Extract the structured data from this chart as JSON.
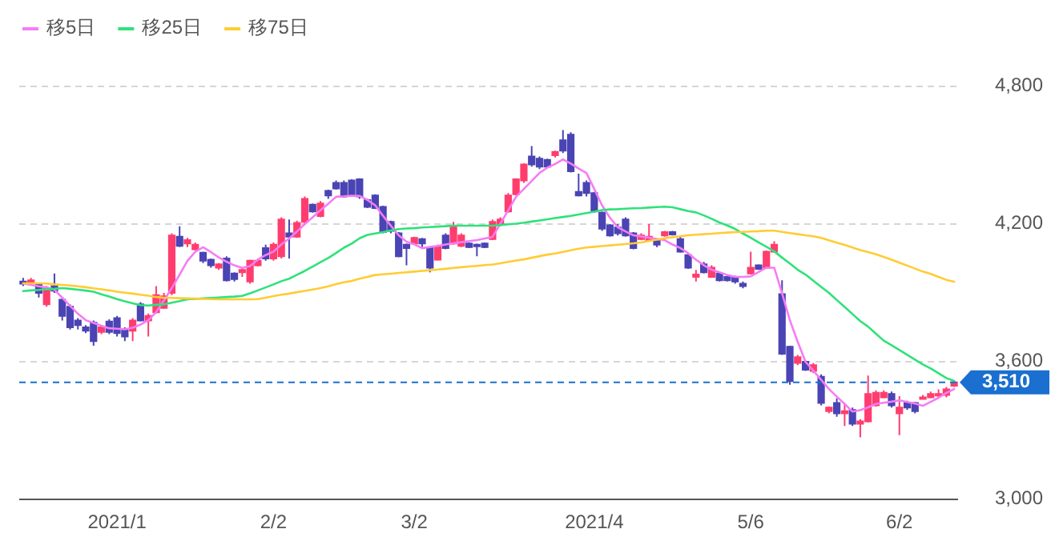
{
  "chart_data": {
    "type": "candlestick",
    "categories": [
      null,
      null,
      null,
      null,
      null,
      null,
      null,
      null,
      null,
      null,
      null,
      null,
      "2021/1",
      null,
      null,
      null,
      null,
      null,
      null,
      null,
      null,
      null,
      null,
      null,
      null,
      null,
      null,
      null,
      null,
      null,
      null,
      null,
      "2/2",
      null,
      null,
      null,
      null,
      null,
      null,
      null,
      null,
      null,
      null,
      null,
      null,
      null,
      null,
      null,
      null,
      null,
      "3/2",
      null,
      null,
      null,
      null,
      null,
      null,
      null,
      null,
      null,
      null,
      null,
      null,
      null,
      null,
      null,
      null,
      null,
      null,
      null,
      null,
      null,
      null,
      "2021/4",
      null,
      null,
      null,
      null,
      null,
      null,
      null,
      null,
      null,
      null,
      null,
      null,
      null,
      null,
      null,
      null,
      null,
      null,
      null,
      "5/6",
      null,
      null,
      null,
      null,
      null,
      null,
      null,
      null,
      null,
      null,
      null,
      null,
      null,
      null,
      null,
      null,
      null,
      null,
      "6/2",
      null,
      null,
      null,
      null,
      null,
      null,
      null
    ],
    "ohlc": [
      [
        3950,
        3965,
        3930,
        3940
      ],
      [
        3945,
        3965,
        3935,
        3955
      ],
      [
        3935,
        3945,
        3880,
        3900
      ],
      [
        3850,
        3930,
        3840,
        3920
      ],
      [
        3930,
        3985,
        3900,
        3910
      ],
      [
        3870,
        3880,
        3780,
        3800
      ],
      [
        3840,
        3850,
        3740,
        3750
      ],
      [
        3780,
        3790,
        3740,
        3760
      ],
      [
        3750,
        3760,
        3725,
        3735
      ],
      [
        3770,
        3780,
        3670,
        3690
      ],
      [
        3730,
        3760,
        3720,
        3750
      ],
      [
        3775,
        3785,
        3720,
        3730
      ],
      [
        3790,
        3800,
        3710,
        3725
      ],
      [
        3740,
        3750,
        3690,
        3710
      ],
      [
        3735,
        3790,
        3690,
        3780
      ],
      [
        3850,
        3860,
        3775,
        3780
      ],
      [
        3780,
        3810,
        3710,
        3800
      ],
      [
        3815,
        3930,
        3810,
        3890
      ],
      [
        3835,
        3900,
        3830,
        3885
      ],
      [
        3900,
        4160,
        3890,
        4150
      ],
      [
        4145,
        4190,
        4100,
        4105
      ],
      [
        4115,
        4140,
        4100,
        4130
      ],
      [
        4090,
        4120,
        4085,
        4110
      ],
      [
        4075,
        4080,
        4030,
        4040
      ],
      [
        4045,
        4050,
        4010,
        4020
      ],
      [
        4010,
        4030,
        4000,
        4025
      ],
      [
        4050,
        4060,
        3950,
        3955
      ],
      [
        3985,
        3990,
        3950,
        3960
      ],
      [
        3990,
        4010,
        3970,
        4000
      ],
      [
        3950,
        4045,
        3940,
        4040
      ],
      [
        4020,
        4050,
        4015,
        4040
      ],
      [
        4095,
        4110,
        4040,
        4050
      ],
      [
        4050,
        4120,
        4040,
        4110
      ],
      [
        4060,
        4230,
        4050,
        4220
      ],
      [
        4160,
        4220,
        4050,
        4145
      ],
      [
        4145,
        4215,
        4140,
        4205
      ],
      [
        4210,
        4320,
        4200,
        4310
      ],
      [
        4285,
        4290,
        4250,
        4255
      ],
      [
        4235,
        4300,
        4230,
        4290
      ],
      [
        4345,
        4350,
        4310,
        4325
      ],
      [
        4380,
        4390,
        4350,
        4355
      ],
      [
        4380,
        4390,
        4315,
        4320
      ],
      [
        4390,
        4395,
        4320,
        4325
      ],
      [
        4395,
        4400,
        4310,
        4320
      ],
      [
        4305,
        4310,
        4270,
        4275
      ],
      [
        4325,
        4330,
        4265,
        4270
      ],
      [
        4275,
        4280,
        4160,
        4165
      ],
      [
        4210,
        4215,
        4160,
        4170
      ],
      [
        4160,
        4165,
        4055,
        4060
      ],
      [
        4110,
        4115,
        4020,
        4095
      ],
      [
        4115,
        4145,
        4110,
        4140
      ],
      [
        4135,
        4140,
        4100,
        4115
      ],
      [
        4095,
        4100,
        3990,
        4010
      ],
      [
        4045,
        4110,
        4040,
        4100
      ],
      [
        4150,
        4160,
        4090,
        4095
      ],
      [
        4115,
        4210,
        4110,
        4190
      ],
      [
        4105,
        4160,
        4100,
        4150
      ],
      [
        4115,
        4120,
        4095,
        4100
      ],
      [
        4110,
        4115,
        4060,
        4105
      ],
      [
        4115,
        4120,
        4095,
        4100
      ],
      [
        4135,
        4220,
        4130,
        4210
      ],
      [
        4200,
        4230,
        4190,
        4220
      ],
      [
        4255,
        4335,
        4250,
        4325
      ],
      [
        4330,
        4400,
        4325,
        4395
      ],
      [
        4390,
        4465,
        4380,
        4460
      ],
      [
        4495,
        4540,
        4450,
        4460
      ],
      [
        4485,
        4495,
        4440,
        4450
      ],
      [
        4480,
        4485,
        4445,
        4450
      ],
      [
        4500,
        4520,
        4490,
        4515
      ],
      [
        4565,
        4610,
        4510,
        4520
      ],
      [
        4590,
        4600,
        4425,
        4430
      ],
      [
        4340,
        4420,
        4320,
        4325
      ],
      [
        4380,
        4390,
        4320,
        4335
      ],
      [
        4335,
        4340,
        4250,
        4255
      ],
      [
        4250,
        4255,
        4170,
        4180
      ],
      [
        4195,
        4200,
        4145,
        4150
      ],
      [
        4185,
        4200,
        4150,
        4160
      ],
      [
        4220,
        4230,
        4145,
        4150
      ],
      [
        4160,
        4165,
        4090,
        4095
      ],
      [
        4135,
        4160,
        4130,
        4150
      ],
      [
        4130,
        4200,
        4125,
        4145
      ],
      [
        4130,
        4135,
        4100,
        4110
      ],
      [
        4150,
        4170,
        4145,
        4165
      ],
      [
        4165,
        4170,
        4150,
        4155
      ],
      [
        4135,
        4145,
        4075,
        4080
      ],
      [
        4065,
        4070,
        4005,
        4010
      ],
      [
        3970,
        4000,
        3950,
        3980
      ],
      [
        4025,
        4035,
        3985,
        3990
      ],
      [
        3970,
        4020,
        3965,
        4010
      ],
      [
        3985,
        3990,
        3950,
        3955
      ],
      [
        3970,
        3975,
        3950,
        3955
      ],
      [
        3970,
        3975,
        3940,
        3950
      ],
      [
        3940,
        3950,
        3920,
        3930
      ],
      [
        3985,
        4080,
        3980,
        4010
      ],
      [
        4020,
        4025,
        4000,
        4005
      ],
      [
        4010,
        4085,
        4005,
        4080
      ],
      [
        4080,
        4125,
        4075,
        4110
      ],
      [
        3895,
        3955,
        3630,
        3635
      ],
      [
        3665,
        3670,
        3500,
        3515
      ],
      [
        3595,
        3630,
        3585,
        3620
      ],
      [
        3600,
        3605,
        3560,
        3565
      ],
      [
        3560,
        3595,
        3550,
        3585
      ],
      [
        3535,
        3545,
        3410,
        3420
      ],
      [
        3385,
        3405,
        3375,
        3400
      ],
      [
        3420,
        3440,
        3360,
        3375
      ],
      [
        3375,
        3420,
        3320,
        3385
      ],
      [
        3390,
        3400,
        3320,
        3330
      ],
      [
        3330,
        3350,
        3270,
        3340
      ],
      [
        3340,
        3540,
        3335,
        3460
      ],
      [
        3410,
        3475,
        3405,
        3465
      ],
      [
        3445,
        3475,
        3440,
        3465
      ],
      [
        3460,
        3470,
        3400,
        3410
      ],
      [
        3375,
        3450,
        3280,
        3400
      ],
      [
        3420,
        3430,
        3390,
        3400
      ],
      [
        3420,
        3425,
        3375,
        3385
      ],
      [
        3440,
        3455,
        3435,
        3445
      ],
      [
        3445,
        3470,
        3440,
        3460
      ],
      [
        3455,
        3480,
        3445,
        3460
      ],
      [
        3455,
        3490,
        3445,
        3480
      ],
      [
        3495,
        3520,
        3490,
        3510
      ]
    ],
    "series": [
      {
        "type": "line",
        "name": "移5日",
        "color": "#f57cf5",
        "values": [
          3941,
          3935,
          3929,
          3924,
          3914,
          3879,
          3844,
          3809,
          3781,
          3769,
          3757,
          3746,
          3744,
          3741,
          3748,
          3762,
          3781,
          3816,
          3868,
          3921,
          3980,
          4040,
          4079,
          4099,
          4078,
          4055,
          4036,
          4020,
          4009,
          4017,
          4045,
          4065,
          4080,
          4111,
          4137,
          4168,
          4200,
          4230,
          4260,
          4289,
          4319,
          4321,
          4324,
          4323,
          4305,
          4282,
          4236,
          4193,
          4151,
          4123,
          4112,
          4095,
          4100,
          4105,
          4111,
          4116,
          4121,
          4126,
          4130,
          4137,
          4144,
          4202,
          4260,
          4319,
          4353,
          4388,
          4423,
          4446,
          4462,
          4482,
          4464,
          4442,
          4423,
          4353,
          4281,
          4228,
          4186,
          4168,
          4151,
          4146,
          4141,
          4135,
          4130,
          4111,
          4096,
          4073,
          4045,
          4021,
          4001,
          3990,
          3978,
          3970,
          3970,
          3972,
          3991,
          4010,
          4010,
          3899,
          3781,
          3687,
          3600,
          3561,
          3521,
          3481,
          3448,
          3416,
          3383,
          3389,
          3401,
          3416,
          3421,
          3426,
          3432,
          3425,
          3418,
          3408,
          3425,
          3443,
          3464,
          3481
        ]
      },
      {
        "type": "line",
        "name": "移25日",
        "color": "#2ee27a",
        "values": [
          3908,
          3911,
          3913,
          3916,
          3918,
          3921,
          3918,
          3914,
          3910,
          3905,
          3894,
          3884,
          3873,
          3863,
          3855,
          3847,
          3845,
          3848,
          3850,
          3857,
          3864,
          3872,
          3874,
          3876,
          3878,
          3880,
          3882,
          3884,
          3887,
          3898,
          3911,
          3924,
          3937,
          3951,
          3962,
          3979,
          3996,
          4015,
          4034,
          4052,
          4074,
          4097,
          4115,
          4138,
          4153,
          4159,
          4165,
          4172,
          4178,
          4181,
          4182,
          4185,
          4187,
          4189,
          4191,
          4193,
          4193,
          4193,
          4193,
          4193,
          4193,
          4196,
          4199,
          4202,
          4206,
          4211,
          4216,
          4221,
          4226,
          4231,
          4236,
          4242,
          4248,
          4254,
          4261,
          4264,
          4265,
          4267,
          4269,
          4270,
          4272,
          4274,
          4276,
          4273,
          4265,
          4257,
          4251,
          4238,
          4223,
          4207,
          4194,
          4179,
          4159,
          4140,
          4120,
          4101,
          4081,
          4054,
          4028,
          4001,
          3980,
          3953,
          3926,
          3900,
          3869,
          3839,
          3808,
          3777,
          3753,
          3722,
          3692,
          3672,
          3651,
          3630,
          3609,
          3588,
          3571,
          3550,
          3529,
          3516
        ]
      },
      {
        "type": "line",
        "name": "移75日",
        "color": "#ffcc33",
        "values": [
          3942,
          3942,
          3942,
          3941,
          3937,
          3935,
          3932,
          3929,
          3925,
          3920,
          3916,
          3911,
          3905,
          3901,
          3897,
          3892,
          3888,
          3882,
          3879,
          3878,
          3877,
          3876,
          3875,
          3874,
          3873,
          3872,
          3872,
          3872,
          3872,
          3872,
          3873,
          3879,
          3886,
          3892,
          3897,
          3903,
          3909,
          3915,
          3921,
          3929,
          3938,
          3946,
          3952,
          3962,
          3970,
          3978,
          3981,
          3984,
          3987,
          3990,
          3993,
          3996,
          3999,
          4002,
          4005,
          4009,
          4012,
          4015,
          4018,
          4021,
          4024,
          4029,
          4035,
          4041,
          4046,
          4053,
          4060,
          4067,
          4072,
          4079,
          4086,
          4093,
          4098,
          4101,
          4104,
          4107,
          4110,
          4113,
          4116,
          4120,
          4127,
          4132,
          4138,
          4143,
          4147,
          4151,
          4154,
          4156,
          4158,
          4161,
          4163,
          4165,
          4166,
          4168,
          4169,
          4171,
          4171,
          4166,
          4161,
          4156,
          4151,
          4147,
          4140,
          4129,
          4119,
          4109,
          4098,
          4087,
          4078,
          4068,
          4057,
          4045,
          4032,
          4019,
          4006,
          3993,
          3983,
          3970,
          3957,
          3949
        ]
      }
    ],
    "ylim": [
      3000,
      4800
    ],
    "yticks": [
      {
        "value": 3000,
        "label": "3,000"
      },
      {
        "value": 3600,
        "label": "3,600"
      },
      {
        "value": 4200,
        "label": "4,200"
      },
      {
        "value": 4800,
        "label": "4,800"
      }
    ],
    "grid": "y",
    "legend": "top left",
    "ref_lines": [
      {
        "axis": "y",
        "value": 3510,
        "label": "3,510",
        "color": "#1a6fd0",
        "line_style": "dashed"
      }
    ]
  }
}
